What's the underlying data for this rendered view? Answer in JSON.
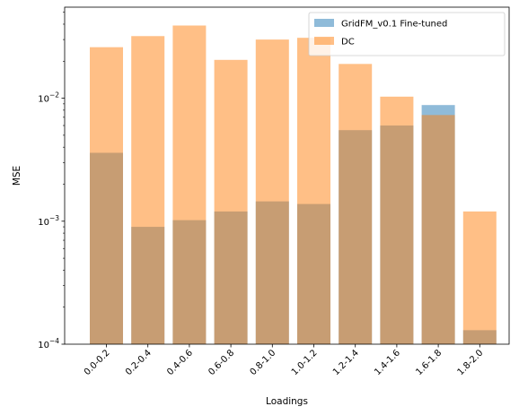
{
  "chart_data": {
    "type": "bar",
    "scale_y": "log",
    "xlabel": "Loadings",
    "ylabel": "MSE",
    "categories": [
      "0.0-0.2",
      "0.2-0.4",
      "0.4-0.6",
      "0.6-0.8",
      "0.8-1.0",
      "1.0-1.2",
      "1.2-1.4",
      "1.4-1.6",
      "1.6-1.8",
      "1.8-2.0"
    ],
    "ylim": [
      0.0001,
      0.055
    ],
    "yticks": [
      {
        "value": 0.0001,
        "base": "10",
        "exp": "−4"
      },
      {
        "value": 0.001,
        "base": "10",
        "exp": "−3"
      },
      {
        "value": 0.01,
        "base": "10",
        "exp": "−2"
      }
    ],
    "series": [
      {
        "name": "GridFM_v0.1 Fine-tuned",
        "color": "#1f77b4",
        "opacity": 0.5,
        "values": [
          0.0036,
          0.0009,
          0.00102,
          0.0012,
          0.00145,
          0.00138,
          0.0055,
          0.006,
          0.0088,
          0.00013
        ]
      },
      {
        "name": "DC",
        "color": "#ff7f0e",
        "opacity": 0.5,
        "values": [
          0.026,
          0.032,
          0.039,
          0.0205,
          0.03,
          0.031,
          0.019,
          0.0103,
          0.0073,
          0.0012
        ]
      }
    ],
    "legend_position": "top-right",
    "grid": false
  }
}
